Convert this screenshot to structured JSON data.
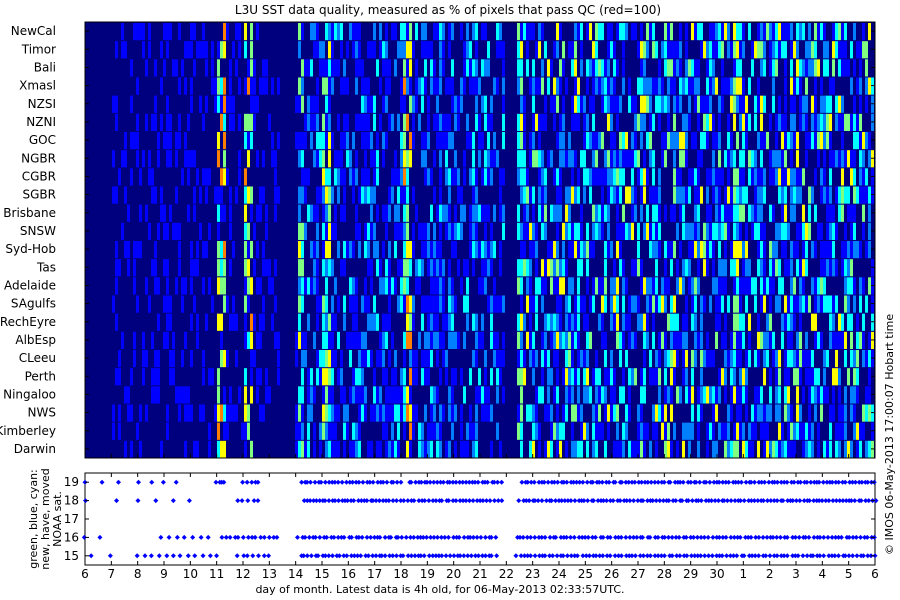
{
  "title": "L3U SST data quality, measured as % of pixels that pass QC (red=100)",
  "right_caption": "© IMOS 06-May-2013 17:00:07 Hobart time",
  "footer": "day of month. Latest data is 4h old, for 06-May-2013 02:33:57UTC.",
  "colors": {
    "colormap": [
      "#00007f",
      "#0000ff",
      "#0080ff",
      "#00ffff",
      "#80ff80",
      "#ffff00",
      "#ff8000",
      "#ff0000"
    ],
    "marker": "#0000ff",
    "background": "#00007f"
  },
  "chart_data": [
    {
      "type": "heatmap",
      "title": "L3U SST data quality, measured as % of pixels that pass QC (red=100)",
      "value_range": [
        0,
        100
      ],
      "rows": [
        "NewCal",
        "Timor",
        "Bali",
        "Xmasl",
        "NZSI",
        "NZNI",
        "GOC",
        "NGBR",
        "CGBR",
        "SGBR",
        "Brisbane",
        "SNSW",
        "Syd-Hob",
        "Tas",
        "Adelaide",
        "SAgulfs",
        "RechEyre",
        "AlbEsp",
        "CLeeu",
        "Perth",
        "Ningaloo",
        "NWS",
        "Kimberley",
        "Darwin"
      ],
      "xlim": [
        6,
        36
      ],
      "no_data_spans": [
        [
          6.0,
          7.0
        ],
        [
          13.4,
          13.9
        ],
        [
          21.9,
          22.3
        ]
      ],
      "high_value_bands": [
        {
          "x_from": 11.0,
          "x_to": 11.3,
          "level": 70
        },
        {
          "x_from": 12.0,
          "x_to": 12.3,
          "level": 65
        },
        {
          "x_from": 14.0,
          "x_to": 14.3,
          "level": 55
        },
        {
          "x_from": 15.0,
          "x_to": 15.3,
          "level": 60
        },
        {
          "x_from": 18.0,
          "x_to": 18.4,
          "level": 75
        },
        {
          "x_from": 22.2,
          "x_to": 22.6,
          "level": 55
        },
        {
          "x_from": 30.5,
          "x_to": 30.8,
          "level": 60
        }
      ]
    },
    {
      "type": "scatter",
      "xlabel": "day of month. Latest data is 4h old, for 06-May-2013 02:33:57UTC.",
      "ylabel": [
        "green, blue, cyan:",
        "new, have, moved",
        "NOAA sat."
      ],
      "x_tick_labels": [
        "6",
        "7",
        "8",
        "9",
        "10",
        "11",
        "12",
        "13",
        "14",
        "15",
        "16",
        "17",
        "18",
        "19",
        "20",
        "21",
        "22",
        "23",
        "24",
        "25",
        "26",
        "27",
        "28",
        "29",
        "30",
        "1",
        "2",
        "3",
        "4",
        "5",
        "6"
      ],
      "xlim": [
        6,
        36
      ],
      "ylim": [
        14.5,
        19.5
      ],
      "y_ticks": [
        15,
        16,
        17,
        18,
        19
      ],
      "series": [
        {
          "values_y": 19,
          "segments": [
            [
              6.0,
              7.3,
              3
            ],
            [
              8.0,
              9.5,
              4
            ],
            [
              11.0,
              11.3,
              4
            ],
            [
              12.0,
              12.6,
              5
            ],
            [
              14.2,
              18.0,
              30
            ],
            [
              18.3,
              21.8,
              30
            ],
            [
              22.6,
              36.0,
              110
            ]
          ]
        },
        {
          "values_y": 18,
          "segments": [
            [
              6.0,
              7.2,
              2
            ],
            [
              8.0,
              10.0,
              4
            ],
            [
              11.8,
              12.6,
              5
            ],
            [
              14.3,
              17.8,
              30
            ],
            [
              18.0,
              21.8,
              30
            ],
            [
              22.5,
              36.0,
              110
            ]
          ]
        },
        {
          "values_y": 16,
          "segments": [
            [
              6.0,
              6.6,
              2
            ],
            [
              8.9,
              10.7,
              7
            ],
            [
              11.2,
              13.3,
              14
            ],
            [
              14.1,
              21.6,
              56
            ],
            [
              22.4,
              36.0,
              100
            ]
          ]
        },
        {
          "values_y": 15,
          "segments": [
            [
              6.2,
              7.0,
              2
            ],
            [
              8.0,
              11.0,
              12
            ],
            [
              11.8,
              13.0,
              7
            ],
            [
              14.2,
              21.6,
              56
            ],
            [
              22.4,
              36.0,
              100
            ]
          ]
        }
      ]
    }
  ]
}
